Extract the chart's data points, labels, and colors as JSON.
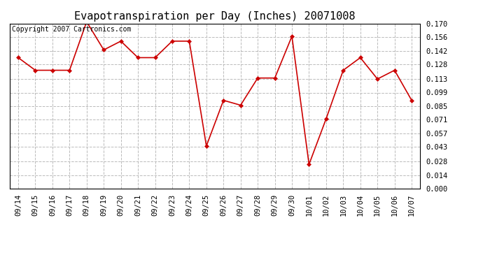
{
  "title": "Evapotranspiration per Day (Inches) 20071008",
  "copyright_text": "Copyright 2007 Cartronics.com",
  "x_labels": [
    "09/14",
    "09/15",
    "09/16",
    "09/17",
    "09/18",
    "09/19",
    "09/20",
    "09/21",
    "09/22",
    "09/23",
    "09/24",
    "09/25",
    "09/26",
    "09/27",
    "09/28",
    "09/29",
    "09/30",
    "10/01",
    "10/02",
    "10/03",
    "10/04",
    "10/05",
    "10/06",
    "10/07"
  ],
  "y_values": [
    0.135,
    0.122,
    0.122,
    0.122,
    0.172,
    0.143,
    0.152,
    0.135,
    0.135,
    0.152,
    0.152,
    0.044,
    0.091,
    0.086,
    0.114,
    0.114,
    0.157,
    0.025,
    0.072,
    0.122,
    0.135,
    0.113,
    0.122,
    0.091
  ],
  "line_color": "#cc0000",
  "marker": "D",
  "marker_size": 3,
  "background_color": "#ffffff",
  "grid_color": "#bbbbbb",
  "ylim": [
    0.0,
    0.17
  ],
  "ytick_values": [
    0.0,
    0.014,
    0.028,
    0.043,
    0.057,
    0.071,
    0.085,
    0.099,
    0.113,
    0.128,
    0.142,
    0.156,
    0.17
  ],
  "title_fontsize": 11,
  "copyright_fontsize": 7,
  "tick_fontsize": 7.5
}
